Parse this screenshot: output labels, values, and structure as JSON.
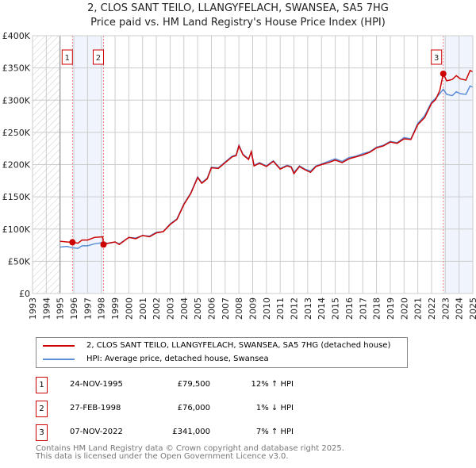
{
  "title": "2, CLOS SANT TEILO, LLANGYFELACH, SWANSEA, SA5 7HG",
  "subtitle": "Price paid vs. HM Land Registry's House Price Index (HPI)",
  "chart_data": {
    "type": "line",
    "xlim": [
      1993,
      2025
    ],
    "ylim": [
      0,
      400000
    ],
    "yticks": [
      0,
      50000,
      100000,
      150000,
      200000,
      250000,
      300000,
      350000,
      400000
    ],
    "ytick_labels": [
      "£0",
      "£50K",
      "£100K",
      "£150K",
      "£200K",
      "£250K",
      "£300K",
      "£350K",
      "£400K"
    ],
    "xticks": [
      "1993",
      "1994",
      "1995",
      "1996",
      "1997",
      "1998",
      "1999",
      "2000",
      "2001",
      "2002",
      "2003",
      "2004",
      "2005",
      "2006",
      "2007",
      "2008",
      "2009",
      "2010",
      "2011",
      "2012",
      "2013",
      "2014",
      "2015",
      "2016",
      "2017",
      "2018",
      "2019",
      "2020",
      "2021",
      "2022",
      "2023",
      "2024",
      "2025"
    ],
    "colors": {
      "price": "#cc0000",
      "hpi": "#5b8fd6"
    },
    "series": [
      {
        "name": "2, CLOS SANT TEILO, LLANGYFELACH, SWANSEA, SA5 7HG (detached house)",
        "points": [
          [
            1995.0,
            81
          ],
          [
            1995.5,
            80
          ],
          [
            1995.9,
            79.5
          ],
          [
            1996.3,
            78
          ],
          [
            1996.6,
            83
          ],
          [
            1997,
            83
          ],
          [
            1997.5,
            87
          ],
          [
            1998.1,
            88
          ],
          [
            1998.16,
            76
          ],
          [
            1998.5,
            78
          ],
          [
            1999,
            80
          ],
          [
            1999.3,
            76
          ],
          [
            2000,
            87
          ],
          [
            2000.5,
            85
          ],
          [
            2001,
            90
          ],
          [
            2001.5,
            88
          ],
          [
            2002,
            94
          ],
          [
            2002.5,
            96
          ],
          [
            2003,
            107
          ],
          [
            2003.5,
            115
          ],
          [
            2004,
            138
          ],
          [
            2004.5,
            155
          ],
          [
            2005,
            180
          ],
          [
            2005.3,
            171
          ],
          [
            2005.7,
            178
          ],
          [
            2006,
            195
          ],
          [
            2006.5,
            194
          ],
          [
            2007,
            203
          ],
          [
            2007.5,
            212
          ],
          [
            2007.8,
            214
          ],
          [
            2008,
            229
          ],
          [
            2008.3,
            215
          ],
          [
            2008.7,
            208
          ],
          [
            2008.9,
            220
          ],
          [
            2009.1,
            198
          ],
          [
            2009.5,
            202
          ],
          [
            2010,
            197
          ],
          [
            2010.5,
            205
          ],
          [
            2011,
            193
          ],
          [
            2011.5,
            198
          ],
          [
            2011.8,
            196
          ],
          [
            2012,
            186
          ],
          [
            2012.4,
            197
          ],
          [
            2012.8,
            192
          ],
          [
            2013.2,
            188
          ],
          [
            2013.6,
            197
          ],
          [
            2014,
            200
          ],
          [
            2014.5,
            203
          ],
          [
            2015,
            207
          ],
          [
            2015.5,
            203
          ],
          [
            2016,
            209
          ],
          [
            2016.5,
            212
          ],
          [
            2017,
            215
          ],
          [
            2017.5,
            219
          ],
          [
            2018,
            226
          ],
          [
            2018.5,
            229
          ],
          [
            2019,
            235
          ],
          [
            2019.5,
            233
          ],
          [
            2020,
            240
          ],
          [
            2020.5,
            239
          ],
          [
            2021,
            262
          ],
          [
            2021.5,
            273
          ],
          [
            2022,
            295
          ],
          [
            2022.3,
            301
          ],
          [
            2022.6,
            315
          ],
          [
            2022.85,
            341
          ],
          [
            2023.1,
            330
          ],
          [
            2023.5,
            332
          ],
          [
            2023.8,
            338
          ],
          [
            2024.1,
            333
          ],
          [
            2024.5,
            331
          ],
          [
            2024.8,
            346
          ],
          [
            2025,
            344
          ]
        ]
      },
      {
        "name": "HPI: Average price, detached house, Swansea",
        "points": [
          [
            1995.0,
            72
          ],
          [
            1995.5,
            73
          ],
          [
            1995.9,
            71
          ],
          [
            1996.3,
            70
          ],
          [
            1996.6,
            74
          ],
          [
            1997,
            74
          ],
          [
            1997.5,
            77
          ],
          [
            1998.1,
            79
          ],
          [
            1998.5,
            78
          ],
          [
            1999,
            80
          ],
          [
            1999.3,
            77
          ],
          [
            2000,
            87
          ],
          [
            2000.5,
            86
          ],
          [
            2001,
            90
          ],
          [
            2001.5,
            89
          ],
          [
            2002,
            95
          ],
          [
            2002.5,
            96
          ],
          [
            2003,
            108
          ],
          [
            2003.5,
            116
          ],
          [
            2004,
            139
          ],
          [
            2004.5,
            156
          ],
          [
            2005,
            181
          ],
          [
            2005.3,
            172
          ],
          [
            2005.7,
            179
          ],
          [
            2006,
            196
          ],
          [
            2006.5,
            195
          ],
          [
            2007,
            204
          ],
          [
            2007.5,
            213
          ],
          [
            2007.8,
            215
          ],
          [
            2008,
            230
          ],
          [
            2008.3,
            216
          ],
          [
            2008.7,
            209
          ],
          [
            2008.9,
            220
          ],
          [
            2009.1,
            199
          ],
          [
            2009.5,
            203
          ],
          [
            2010,
            198
          ],
          [
            2010.5,
            206
          ],
          [
            2011,
            194
          ],
          [
            2011.5,
            199
          ],
          [
            2011.8,
            197
          ],
          [
            2012,
            188
          ],
          [
            2012.4,
            198
          ],
          [
            2012.8,
            193
          ],
          [
            2013.2,
            190
          ],
          [
            2013.6,
            198
          ],
          [
            2014,
            201
          ],
          [
            2014.5,
            205
          ],
          [
            2015,
            209
          ],
          [
            2015.5,
            205
          ],
          [
            2016,
            211
          ],
          [
            2016.5,
            213
          ],
          [
            2017,
            217
          ],
          [
            2017.5,
            220
          ],
          [
            2018,
            227
          ],
          [
            2018.5,
            230
          ],
          [
            2019,
            236
          ],
          [
            2019.5,
            234
          ],
          [
            2020,
            242
          ],
          [
            2020.5,
            240
          ],
          [
            2021,
            264
          ],
          [
            2021.5,
            276
          ],
          [
            2022,
            297
          ],
          [
            2022.3,
            303
          ],
          [
            2022.6,
            310
          ],
          [
            2022.85,
            317
          ],
          [
            2023.1,
            309
          ],
          [
            2023.5,
            307
          ],
          [
            2023.8,
            313
          ],
          [
            2024.1,
            310
          ],
          [
            2024.5,
            309
          ],
          [
            2024.8,
            322
          ],
          [
            2025,
            320
          ]
        ]
      }
    ],
    "sales": [
      {
        "n": "1",
        "x": 1995.9,
        "y": 79.5,
        "date": "24-NOV-1995",
        "price": "£79,500",
        "hpi": "12% ↑ HPI"
      },
      {
        "n": "2",
        "x": 1998.16,
        "y": 76,
        "date": "27-FEB-1998",
        "price": "£76,000",
        "hpi": "1% ↓ HPI"
      },
      {
        "n": "3",
        "x": 2022.85,
        "y": 341,
        "date": "07-NOV-2022",
        "price": "£341,000",
        "hpi": "7% ↑ HPI"
      }
    ],
    "legend": [
      "2, CLOS SANT TEILO, LLANGYFELACH, SWANSEA, SA5 7HG (detached house)",
      "HPI: Average price, detached house, Swansea"
    ]
  },
  "footer": [
    "Contains HM Land Registry data © Crown copyright and database right 2025.",
    "This data is licensed under the Open Government Licence v3.0."
  ]
}
